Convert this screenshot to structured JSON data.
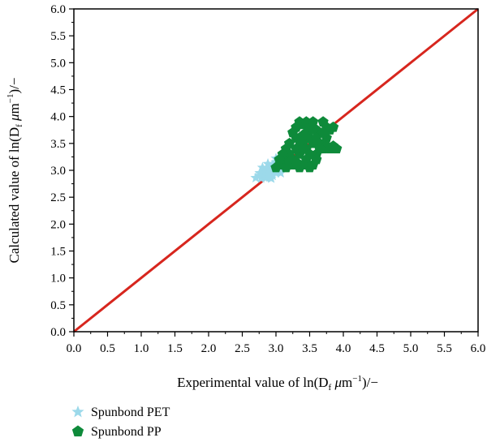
{
  "chart_data": {
    "type": "scatter",
    "title": "",
    "xlabel": {
      "prefix": "Experimental value of ln(D",
      "sub": "f",
      "unit_mu": "μ",
      "unit_m": "m",
      "sup": "−1",
      "suffix": ")/−"
    },
    "ylabel": {
      "prefix": "Calculated value of ln(D",
      "sub": "f",
      "unit_mu": "μ",
      "unit_m": "m",
      "sup": "−1",
      "suffix": ")/−"
    },
    "xlim": [
      0.0,
      6.0
    ],
    "ylim": [
      0.0,
      6.0
    ],
    "ticks": [
      "0.0",
      "0.5",
      "1.0",
      "1.5",
      "2.0",
      "2.5",
      "3.0",
      "3.5",
      "4.0",
      "4.5",
      "5.0",
      "5.5",
      "6.0"
    ],
    "grid": false,
    "legend_position": "bottom-left",
    "reference_line": {
      "type": "y=x",
      "color": "#d7261e",
      "from": [
        0,
        0
      ],
      "to": [
        6,
        6
      ]
    },
    "series": [
      {
        "name": "Spunbond PET",
        "marker": "star",
        "color": "#9cd9ea",
        "points": [
          [
            2.7,
            2.86
          ],
          [
            2.75,
            2.9
          ],
          [
            2.78,
            2.85
          ],
          [
            2.8,
            2.95
          ],
          [
            2.82,
            2.88
          ],
          [
            2.85,
            3.0
          ],
          [
            2.85,
            2.86
          ],
          [
            2.88,
            2.92
          ],
          [
            2.9,
            3.05
          ],
          [
            2.9,
            2.87
          ],
          [
            2.92,
            2.98
          ],
          [
            2.95,
            3.1
          ],
          [
            2.95,
            2.9
          ],
          [
            2.97,
            3.02
          ],
          [
            3.0,
            3.15
          ],
          [
            3.0,
            2.95
          ],
          [
            3.02,
            3.08
          ],
          [
            3.05,
            3.2
          ],
          [
            3.05,
            3.0
          ],
          [
            3.08,
            3.12
          ],
          [
            3.1,
            3.25
          ],
          [
            3.12,
            3.05
          ],
          [
            3.15,
            3.18
          ],
          [
            2.8,
            3.05
          ],
          [
            2.88,
            3.12
          ],
          [
            2.93,
            2.85
          ],
          [
            3.0,
            3.22
          ],
          [
            2.76,
            2.95
          ],
          [
            3.07,
            2.95
          ],
          [
            3.12,
            3.28
          ]
        ]
      },
      {
        "name": "Spunbond PP",
        "marker": "pentagon",
        "color": "#0e8a3a",
        "points": [
          [
            3.0,
            3.05
          ],
          [
            3.05,
            3.1
          ],
          [
            3.1,
            3.2
          ],
          [
            3.15,
            3.05
          ],
          [
            3.2,
            3.3
          ],
          [
            3.25,
            3.1
          ],
          [
            3.3,
            3.4
          ],
          [
            3.35,
            3.05
          ],
          [
            3.4,
            3.5
          ],
          [
            3.45,
            3.2
          ],
          [
            3.5,
            3.6
          ],
          [
            3.55,
            3.1
          ],
          [
            3.6,
            3.3
          ],
          [
            3.65,
            3.7
          ],
          [
            3.7,
            3.4
          ],
          [
            3.75,
            3.8
          ],
          [
            3.8,
            3.4
          ],
          [
            3.85,
            3.45
          ],
          [
            3.9,
            3.4
          ],
          [
            3.35,
            3.9
          ],
          [
            3.4,
            3.85
          ],
          [
            3.45,
            3.9
          ],
          [
            3.5,
            3.8
          ],
          [
            3.55,
            3.9
          ],
          [
            3.6,
            3.75
          ],
          [
            3.7,
            3.9
          ],
          [
            3.25,
            3.7
          ],
          [
            3.3,
            3.6
          ],
          [
            3.2,
            3.5
          ],
          [
            3.15,
            3.4
          ],
          [
            3.1,
            3.3
          ],
          [
            3.25,
            3.2
          ],
          [
            3.35,
            3.3
          ],
          [
            3.45,
            3.4
          ],
          [
            3.55,
            3.5
          ],
          [
            3.65,
            3.5
          ],
          [
            3.75,
            3.6
          ],
          [
            3.8,
            3.75
          ],
          [
            3.85,
            3.8
          ],
          [
            3.4,
            3.65
          ],
          [
            3.5,
            3.3
          ],
          [
            3.6,
            3.2
          ],
          [
            3.2,
            3.15
          ],
          [
            3.05,
            3.2
          ],
          [
            3.3,
            3.8
          ],
          [
            3.75,
            3.45
          ],
          [
            3.65,
            3.4
          ],
          [
            3.45,
            3.7
          ],
          [
            3.55,
            3.75
          ],
          [
            3.5,
            3.05
          ],
          [
            3.4,
            3.1
          ],
          [
            3.3,
            3.15
          ],
          [
            3.6,
            3.6
          ],
          [
            3.7,
            3.7
          ],
          [
            3.4,
            3.4
          ],
          [
            3.35,
            3.55
          ]
        ]
      }
    ]
  }
}
